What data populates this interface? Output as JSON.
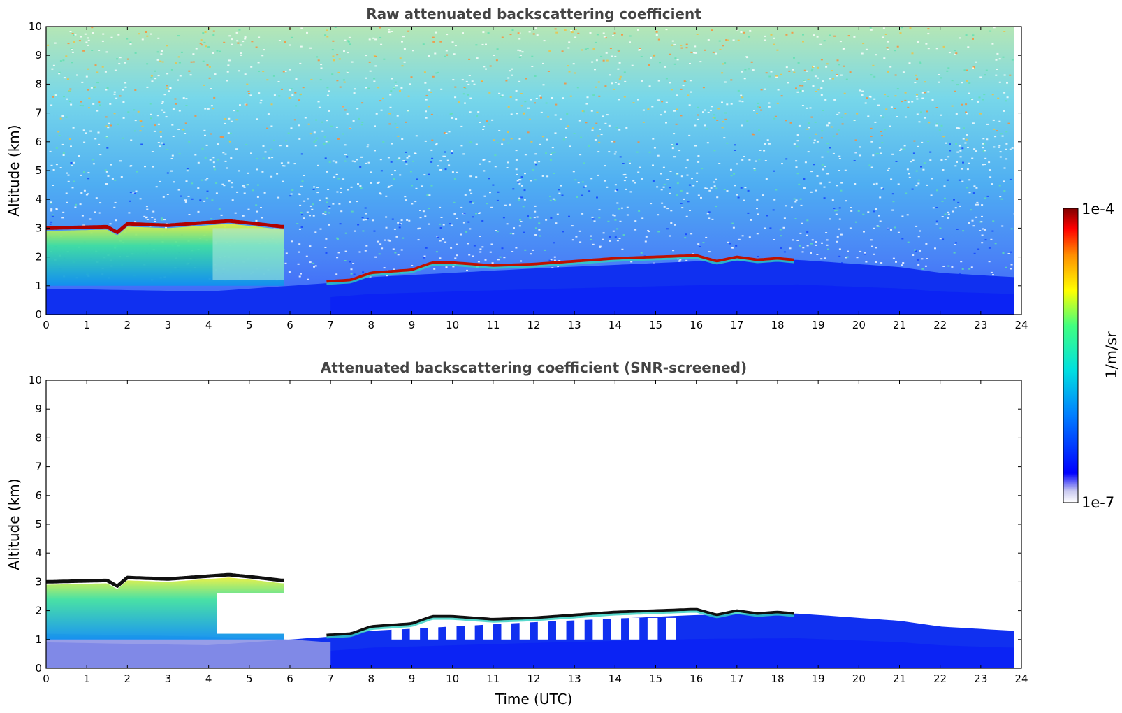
{
  "chart_data": [
    {
      "type": "heatmap",
      "title": "Raw attenuated backscattering coefficient",
      "xlabel": "",
      "ylabel": "Altitude (km)",
      "xlim": [
        0,
        24
      ],
      "ylim": [
        0,
        10
      ],
      "xticks": [
        "0",
        "1",
        "2",
        "3",
        "4",
        "5",
        "6",
        "7",
        "8",
        "9",
        "10",
        "11",
        "12",
        "13",
        "14",
        "15",
        "16",
        "17",
        "18",
        "19",
        "20",
        "21",
        "22",
        "23",
        "24"
      ],
      "yticks": [
        "0",
        "1",
        "2",
        "3",
        "4",
        "5",
        "6",
        "7",
        "8",
        "9",
        "10"
      ],
      "screened": false,
      "features": {
        "cloud_top_km": [
          [
            0,
            3.0
          ],
          [
            1.5,
            3.05
          ],
          [
            1.75,
            2.85
          ],
          [
            2,
            3.15
          ],
          [
            3,
            3.1
          ],
          [
            4,
            3.2
          ],
          [
            4.5,
            3.25
          ],
          [
            5.2,
            3.15
          ],
          [
            5.8,
            3.05
          ]
        ],
        "cloud_base_km": 1.0,
        "cloud_x_range": [
          0,
          5.9
        ],
        "layer_top_km": [
          [
            6.9,
            1.15
          ],
          [
            7.5,
            1.2
          ],
          [
            8,
            1.45
          ],
          [
            9,
            1.55
          ],
          [
            9.5,
            1.8
          ],
          [
            10,
            1.8
          ],
          [
            11,
            1.7
          ],
          [
            12,
            1.75
          ],
          [
            13,
            1.85
          ],
          [
            14,
            1.95
          ],
          [
            15,
            2.0
          ],
          [
            16,
            2.05
          ],
          [
            16.5,
            1.85
          ],
          [
            17,
            2.0
          ],
          [
            17.5,
            1.9
          ],
          [
            18,
            1.95
          ],
          [
            18.4,
            1.9
          ]
        ],
        "boundary_layer_top_km": [
          [
            0,
            0.9
          ],
          [
            4,
            0.8
          ],
          [
            6,
            1.0
          ],
          [
            7,
            1.1
          ],
          [
            8,
            1.3
          ],
          [
            12,
            1.6
          ],
          [
            16,
            1.85
          ],
          [
            18.5,
            1.9
          ],
          [
            20,
            1.75
          ],
          [
            21,
            1.65
          ],
          [
            22,
            1.45
          ],
          [
            23.8,
            1.3
          ]
        ]
      }
    },
    {
      "type": "heatmap",
      "title": "Attenuated backscattering coefficient (SNR-screened)",
      "xlabel": "Time (UTC)",
      "ylabel": "Altitude (km)",
      "xlim": [
        0,
        24
      ],
      "ylim": [
        0,
        10
      ],
      "xticks": [
        "0",
        "1",
        "2",
        "3",
        "4",
        "5",
        "6",
        "7",
        "8",
        "9",
        "10",
        "11",
        "12",
        "13",
        "14",
        "15",
        "16",
        "17",
        "18",
        "19",
        "20",
        "21",
        "22",
        "23",
        "24"
      ],
      "yticks": [
        "0",
        "1",
        "2",
        "3",
        "4",
        "5",
        "6",
        "7",
        "8",
        "9",
        "10"
      ],
      "screened": true,
      "features": {
        "cloud_top_km": [
          [
            0,
            3.0
          ],
          [
            1.5,
            3.05
          ],
          [
            1.75,
            2.85
          ],
          [
            2,
            3.15
          ],
          [
            3,
            3.1
          ],
          [
            4,
            3.2
          ],
          [
            4.5,
            3.25
          ],
          [
            5.2,
            3.15
          ],
          [
            5.8,
            3.05
          ]
        ],
        "layer_top_km": [
          [
            6.9,
            1.15
          ],
          [
            7.5,
            1.2
          ],
          [
            8,
            1.45
          ],
          [
            9,
            1.55
          ],
          [
            9.5,
            1.8
          ],
          [
            10,
            1.8
          ],
          [
            11,
            1.7
          ],
          [
            12,
            1.75
          ],
          [
            13,
            1.85
          ],
          [
            14,
            1.95
          ],
          [
            15,
            2.0
          ],
          [
            16,
            2.05
          ],
          [
            16.5,
            1.85
          ],
          [
            17,
            2.0
          ],
          [
            17.5,
            1.9
          ],
          [
            18,
            1.95
          ],
          [
            18.4,
            1.9
          ]
        ],
        "boundary_layer_top_km": [
          [
            0,
            0.9
          ],
          [
            4,
            0.8
          ],
          [
            6,
            1.0
          ],
          [
            7,
            1.1
          ],
          [
            8,
            1.3
          ],
          [
            12,
            1.6
          ],
          [
            16,
            1.85
          ],
          [
            18.5,
            1.9
          ],
          [
            20,
            1.75
          ],
          [
            21,
            1.65
          ],
          [
            22,
            1.45
          ],
          [
            23.8,
            1.3
          ]
        ]
      }
    }
  ],
  "colorbar": {
    "label": "1/m/sr",
    "max_label": "1e-4",
    "min_label": "1e-7",
    "scale": "log",
    "colormap": [
      "#ffffff",
      "#c8c8f0",
      "#0000ff",
      "#0080ff",
      "#00e0e0",
      "#40ff80",
      "#ffff00",
      "#ff9000",
      "#ff0000",
      "#800000"
    ]
  }
}
